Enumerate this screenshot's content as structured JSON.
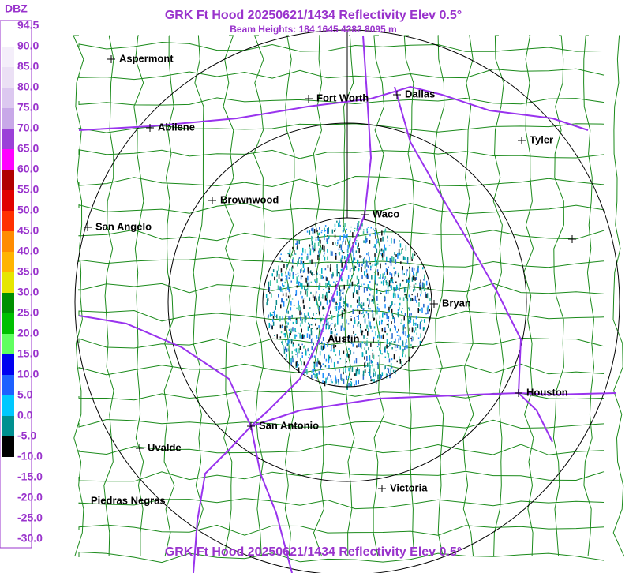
{
  "header": {
    "title": "GRK Ft Hood 20250621/1434 Reflectivity Elev 0.5°",
    "subtitle": "Beam Heights: 184 1645 4282 8095 m"
  },
  "legend": {
    "title": "DBZ",
    "labels": [
      "94.5",
      "90.0",
      "85.0",
      "80.0",
      "75.0",
      "70.0",
      "65.0",
      "60.0",
      "55.0",
      "50.0",
      "45.0",
      "40.0",
      "35.0",
      "30.0",
      "25.0",
      "20.0",
      "15.0",
      "10.0",
      "5.0",
      "0.0",
      "-5.0",
      "-10.0",
      "-15.0",
      "-20.0",
      "-25.0",
      "-30.0"
    ]
  },
  "cities": [
    "Aspermont",
    "Fort Worth",
    "Dallas",
    "Abilene",
    "Tyler",
    "Brownwood",
    "Waco",
    "San Angelo",
    "Bryan",
    "Austin",
    "Houston",
    "San Antonio",
    "Uvalde",
    "Victoria",
    "Piedras Negras"
  ],
  "footer": {
    "title": "GRK Ft Hood 20250621/1434 Reflectivity Elev 0.5°"
  }
}
